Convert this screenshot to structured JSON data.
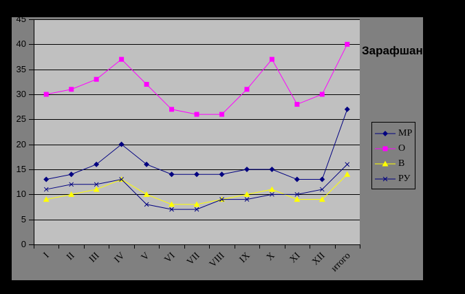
{
  "area_label": "Зарафшан",
  "chart_data": {
    "type": "line",
    "title": "",
    "xlabel": "",
    "ylabel": "",
    "categories": [
      "I",
      "II",
      "III",
      "IV",
      "V",
      "VI",
      "VII",
      "VIII",
      "IX",
      "X",
      "XI",
      "XII",
      "итого"
    ],
    "series": [
      {
        "name": "МР",
        "color": "#000080",
        "marker": "diamond",
        "values": [
          13,
          14,
          16,
          20,
          16,
          14,
          14,
          14,
          15,
          15,
          13,
          13,
          27
        ]
      },
      {
        "name": "О",
        "color": "#FF00FF",
        "marker": "square",
        "values": [
          30,
          31,
          33,
          37,
          32,
          27,
          26,
          26,
          31,
          37,
          28,
          30,
          40
        ]
      },
      {
        "name": "В",
        "color": "#FFFF00",
        "marker": "triangle",
        "values": [
          9,
          10,
          11,
          13,
          10,
          8,
          8,
          9,
          10,
          11,
          9,
          9,
          14
        ]
      },
      {
        "name": "РУ",
        "color": "#000080",
        "marker": "x",
        "values": [
          11,
          12,
          12,
          13,
          8,
          7,
          7,
          9,
          9,
          10,
          10,
          11,
          16
        ]
      }
    ],
    "ylim": [
      0,
      45
    ],
    "y_ticks": [
      0,
      5,
      10,
      15,
      20,
      25,
      30,
      35,
      40,
      45
    ],
    "grid": true,
    "legend_position": "right"
  },
  "colors": {
    "outer_bg": "#000000",
    "chart_bg": "#808080",
    "plot_bg": "#C0C0C0",
    "grid": "#000000",
    "text": "#000000"
  }
}
